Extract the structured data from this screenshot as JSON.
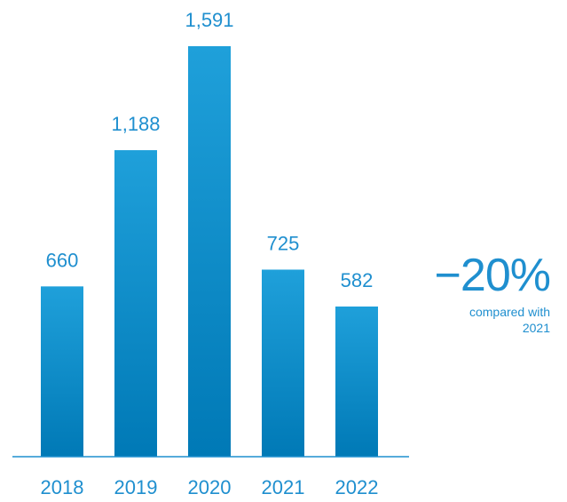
{
  "colors": {
    "bar_top": "#1fa0da",
    "bar_bottom": "#0079b6",
    "text": "#1f8fcf",
    "axis": "#1f8fcf"
  },
  "chart_data": {
    "type": "bar",
    "categories": [
      "2018",
      "2019",
      "2020",
      "2021",
      "2022"
    ],
    "values": [
      660,
      1188,
      1591,
      725,
      582
    ],
    "value_labels": [
      "660",
      "1,188",
      "1,591",
      "725",
      "582"
    ],
    "title": "",
    "xlabel": "",
    "ylabel": "",
    "ylim": [
      0,
      1700
    ],
    "grid": false
  },
  "callout": {
    "change": "−20%",
    "note": "compared with 2021"
  }
}
